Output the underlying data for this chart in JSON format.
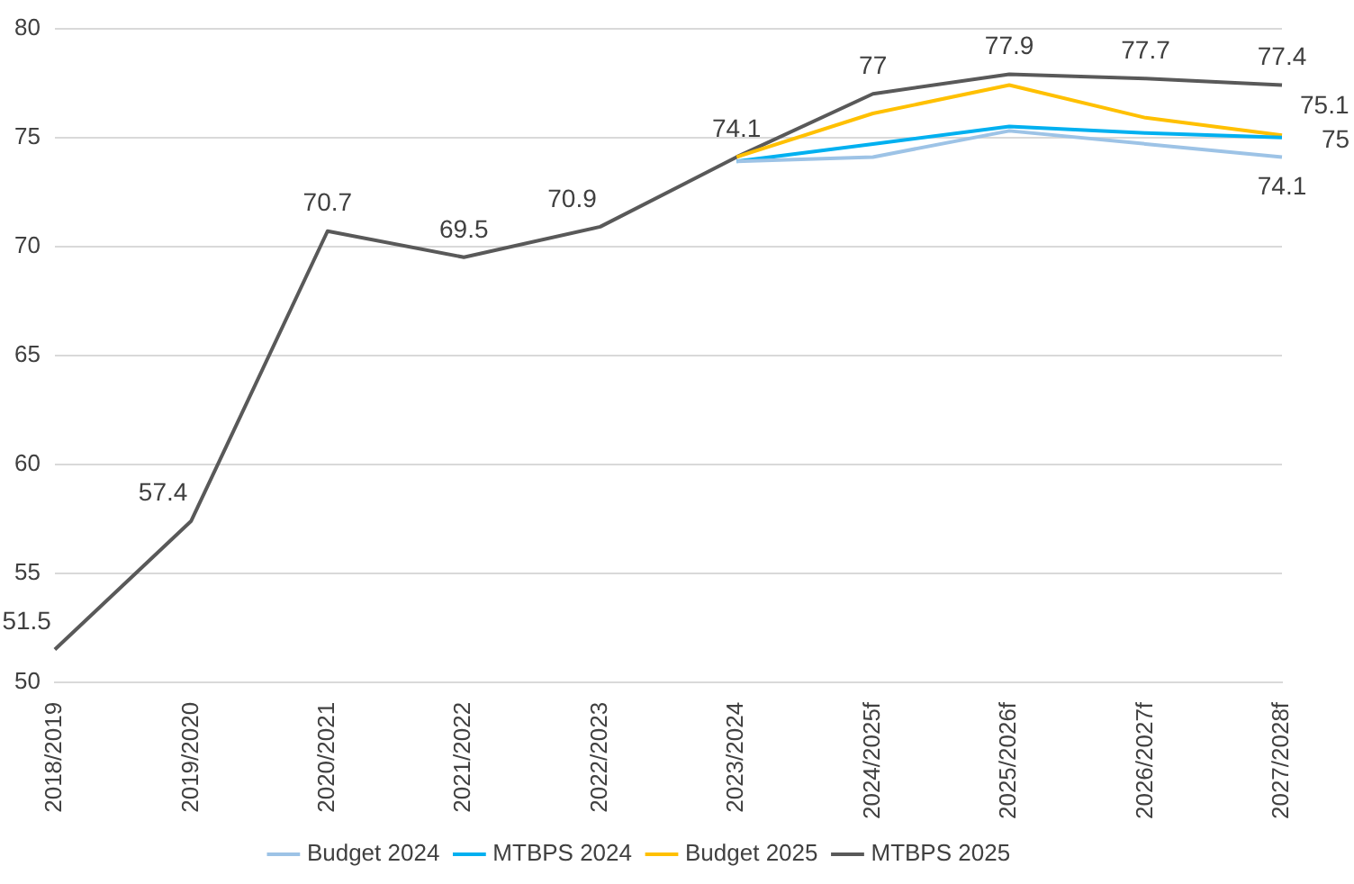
{
  "chart_data": {
    "type": "line",
    "categories": [
      "2018/2019",
      "2019/2020",
      "2020/2021",
      "2021/2022",
      "2022/2023",
      "2023/2024",
      "2024/2025f",
      "2025/2026f",
      "2026/2027f",
      "2027/2028f"
    ],
    "series": [
      {
        "name": "Budget 2024",
        "color": "#9dc3e6",
        "values": [
          null,
          null,
          null,
          null,
          null,
          73.9,
          74.1,
          75.3,
          74.7,
          74.1
        ],
        "value_labels": [
          null,
          null,
          null,
          null,
          null,
          null,
          null,
          null,
          null,
          "74.1"
        ]
      },
      {
        "name": "MTBPS 2024",
        "color": "#00b0f0",
        "values": [
          null,
          null,
          null,
          null,
          null,
          73.9,
          74.7,
          75.5,
          75.2,
          75
        ],
        "value_labels": [
          null,
          null,
          null,
          null,
          null,
          null,
          null,
          null,
          null,
          "75"
        ]
      },
      {
        "name": "Budget 2025",
        "color": "#ffc000",
        "values": [
          null,
          null,
          null,
          null,
          null,
          74.1,
          76.1,
          77.4,
          75.9,
          75.1
        ],
        "value_labels": [
          null,
          null,
          null,
          null,
          null,
          null,
          null,
          null,
          null,
          "75.1"
        ]
      },
      {
        "name": "MTBPS 2025",
        "color": "#595959",
        "values": [
          51.5,
          57.4,
          70.7,
          69.5,
          70.9,
          74.1,
          77,
          77.9,
          77.7,
          77.4
        ],
        "value_labels": [
          "51.5",
          "57.4",
          "70.7",
          "69.5",
          "70.9",
          "74.1",
          "77",
          "77.9",
          "77.7",
          "77.4"
        ]
      }
    ],
    "ylim": [
      50,
      80
    ],
    "yticks": [
      50,
      55,
      60,
      65,
      70,
      75,
      80
    ],
    "grid": "y",
    "legend": "bottom",
    "marker": "none",
    "line_style": "solid"
  }
}
